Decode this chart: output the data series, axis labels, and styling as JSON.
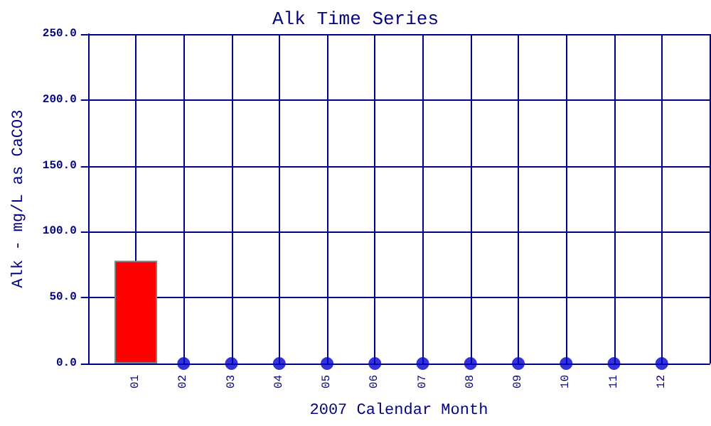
{
  "chart_data": {
    "type": "bar",
    "title": "Alk Time Series",
    "xlabel": "2007 Calendar Month",
    "ylabel": "Alk - mg/L as CaCO3",
    "categories": [
      "01",
      "02",
      "03",
      "04",
      "05",
      "06",
      "07",
      "08",
      "09",
      "10",
      "11",
      "12"
    ],
    "series": [
      {
        "color": "#ff0000",
        "values": [
          78,
          null,
          null,
          null,
          null,
          null,
          null,
          null,
          null,
          null,
          null,
          null
        ]
      },
      {
        "type": "scatter",
        "color": "#0000cc",
        "x": [
          "02",
          "03",
          "04",
          "05",
          "06",
          "07",
          "08",
          "09",
          "10",
          "11",
          "12"
        ],
        "values": [
          0,
          0,
          0,
          0,
          0,
          0,
          0,
          0,
          0,
          0,
          0
        ]
      }
    ],
    "ylim": [
      0,
      250
    ],
    "yticks": [
      {
        "value": 0,
        "label": "0.0"
      },
      {
        "value": 50,
        "label": "50.0"
      },
      {
        "value": 100,
        "label": "100.0"
      },
      {
        "value": 150,
        "label": "150.0"
      },
      {
        "value": 200,
        "label": "200.0"
      },
      {
        "value": 250,
        "label": "250.0"
      }
    ],
    "grid": true,
    "marker": "circle"
  }
}
